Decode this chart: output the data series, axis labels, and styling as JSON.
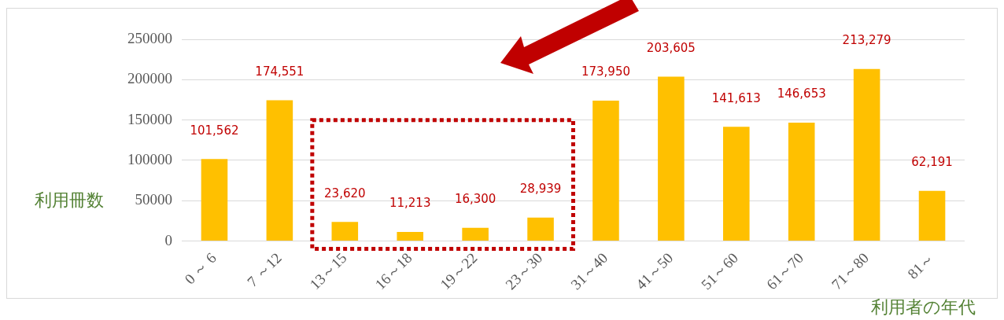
{
  "chart_data": {
    "type": "bar",
    "xlabel": "利用者の年代",
    "ylabel": "利用冊数",
    "categories": [
      "0 ～ 6",
      "7 ～12",
      "13～15",
      "16～18",
      "19～22",
      "23～30",
      "31～40",
      "41～50",
      "51～60",
      "61～70",
      "71～80",
      "81～"
    ],
    "values": [
      101562,
      174551,
      23620,
      11213,
      16300,
      28939,
      173950,
      203605,
      141613,
      146653,
      213279,
      62191
    ],
    "value_labels": [
      "101,562",
      "174,551",
      "23,620",
      "11,213",
      "16,300",
      "28,939",
      "173,950",
      "203,605",
      "141,613",
      "146,653",
      "213,279",
      "62,191"
    ],
    "color": "#ffc000",
    "ylim": [
      0,
      250000
    ],
    "yticks": [
      0,
      50000,
      100000,
      150000,
      200000,
      250000
    ],
    "grid": "y",
    "legend": false
  }
}
